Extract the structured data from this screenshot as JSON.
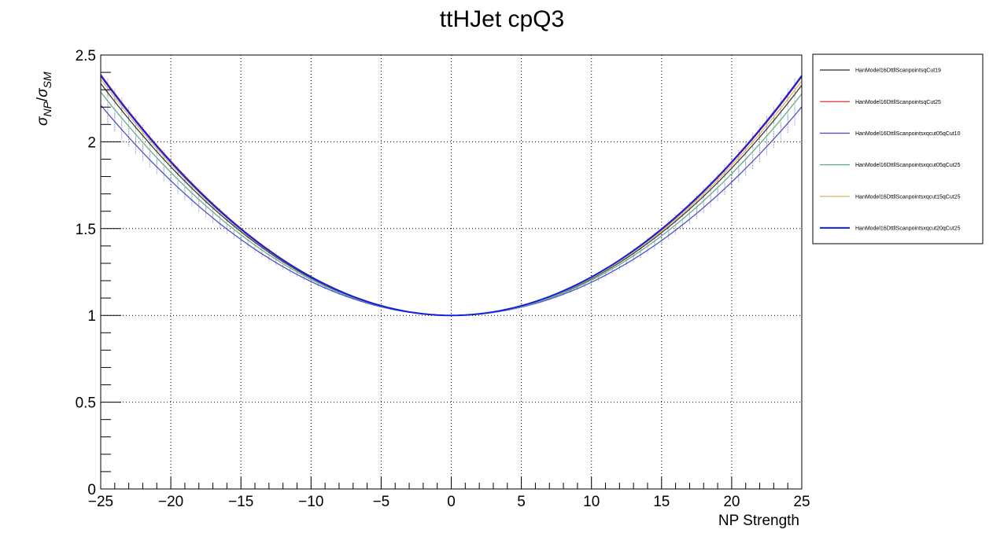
{
  "chart_data": {
    "type": "line",
    "title": "ttHJet cpQ3",
    "xlabel": "NP Strength",
    "ylabel": "σ_NP/σ_SM",
    "ylabel_parts": {
      "sym1": "σ",
      "sub1": "NP",
      "slash": "/",
      "sym2": "σ",
      "sub2": "SM"
    },
    "xlim": [
      -25,
      25
    ],
    "ylim": [
      0,
      2.5
    ],
    "x_ticks": [
      -25,
      -20,
      -15,
      -10,
      -5,
      0,
      5,
      10,
      15,
      20,
      25
    ],
    "x_tick_labels": [
      "−25",
      "−20",
      "−15",
      "−10",
      "−5",
      "0",
      "5",
      "10",
      "15",
      "20",
      "25"
    ],
    "y_ticks": [
      0,
      0.5,
      1,
      1.5,
      2,
      2.5
    ],
    "y_tick_labels": [
      "0",
      "0.5",
      "1",
      "1.5",
      "2",
      "2.5"
    ],
    "grid": true,
    "legend_position": "right",
    "series": [
      {
        "name": "HanModel16DttllScanpointsqCut19",
        "color": "#3d3d3d",
        "a": -0.0002,
        "b": 0.00213,
        "band": 0.02,
        "band_color": "#888888"
      },
      {
        "name": "HanModel16DttllScanpointsqCut25",
        "color": "#dd3333",
        "a": -0.0003,
        "b": 0.00221,
        "band": 0.0,
        "band_color": "#dd3333"
      },
      {
        "name": "HanModel16DttllScanpointsxqcut05qCut10",
        "color": "#5050c8",
        "a": -0.0002,
        "b": 0.00193,
        "band": 0.06,
        "band_color": "#5050d8"
      },
      {
        "name": "HanModel16DttllScanpointsxqcut05qCut25",
        "color": "#6aaa8e",
        "a": -0.0002,
        "b": 0.00205,
        "band": 0.05,
        "band_color": "#6aaa8e"
      },
      {
        "name": "HanModel16DttllScanpointsxqcut15qCut25",
        "color": "#d4b870",
        "a": -0.0002,
        "b": 0.00217,
        "band": 0.02,
        "band_color": "#d4b870"
      },
      {
        "name": "HanModel16DttllScanpointsxqcut20qCut25",
        "color": "#1020e0",
        "a": 0.0,
        "b": 0.00221,
        "band": 0.04,
        "band_color": "#4060f0"
      }
    ]
  }
}
